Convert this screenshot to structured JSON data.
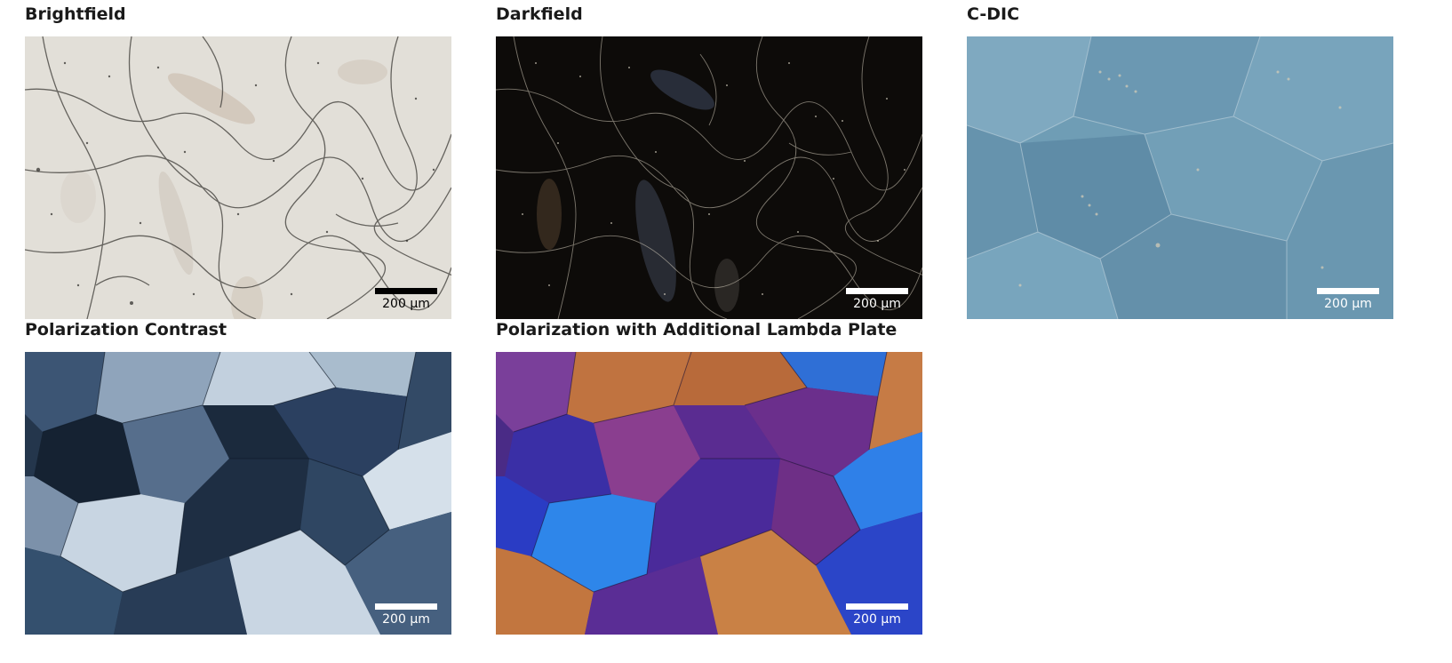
{
  "panels": [
    {
      "title": "Brightfield",
      "scale_label": "200  µm",
      "scale_color": "#000000"
    },
    {
      "title": "Darkfield",
      "scale_label": "200  µm",
      "scale_color": "#ffffff"
    },
    {
      "title": "C-DIC",
      "scale_label": "200  µm",
      "scale_color": "#ffffff"
    },
    {
      "title": "Polarization Contrast",
      "scale_label": "200 µm",
      "scale_color": "#ffffff"
    },
    {
      "title": "Polarization with Additional Lambda Plate",
      "scale_label": "200 µm",
      "scale_color": "#ffffff"
    }
  ],
  "colors": {
    "brightfield_bg": "#e2dfd8",
    "darkfield_bg": "#0d0b09",
    "cdic_bg": "#6f9db5",
    "polarization_bg": "#24364c",
    "lambda_bg": "#4a2b86"
  }
}
